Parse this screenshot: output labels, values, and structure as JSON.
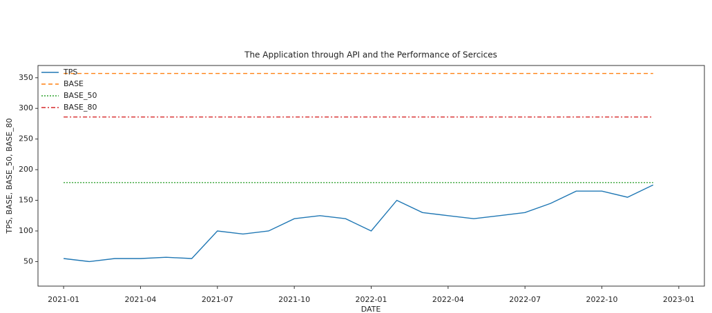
{
  "chart_data": {
    "type": "line",
    "title": "The Application through API and the Performance of Sercices",
    "x_label": "DATE",
    "y_label": "TPS, BASE, BASE_50, BASE_80",
    "x": [
      "2021-01",
      "2021-02",
      "2021-03",
      "2021-04",
      "2021-05",
      "2021-06",
      "2021-07",
      "2021-08",
      "2021-09",
      "2021-10",
      "2021-11",
      "2021-12",
      "2022-01",
      "2022-02",
      "2022-03",
      "2022-04",
      "2022-05",
      "2022-06",
      "2022-07",
      "2022-08",
      "2022-09",
      "2022-10",
      "2022-11",
      "2022-12"
    ],
    "series": [
      {
        "name": "TPS",
        "color": "#1f77b4",
        "dash": "solid",
        "values": [
          55,
          50,
          55,
          55,
          57,
          55,
          100,
          95,
          100,
          120,
          125,
          120,
          100,
          150,
          130,
          125,
          120,
          125,
          130,
          145,
          165,
          165,
          155,
          175
        ]
      },
      {
        "name": "BASE",
        "color": "#ff7f0e",
        "dash": "dashed",
        "values": [
          357,
          357,
          357,
          357,
          357,
          357,
          357,
          357,
          357,
          357,
          357,
          357,
          357,
          357,
          357,
          357,
          357,
          357,
          357,
          357,
          357,
          357,
          357,
          357
        ]
      },
      {
        "name": "BASE_50",
        "color": "#2ca02c",
        "dash": "dotted",
        "values": [
          179,
          179,
          179,
          179,
          179,
          179,
          179,
          179,
          179,
          179,
          179,
          179,
          179,
          179,
          179,
          179,
          179,
          179,
          179,
          179,
          179,
          179,
          179,
          179
        ]
      },
      {
        "name": "BASE_80",
        "color": "#d62728",
        "dash": "dashdot",
        "values": [
          286,
          286,
          286,
          286,
          286,
          286,
          286,
          286,
          286,
          286,
          286,
          286,
          286,
          286,
          286,
          286,
          286,
          286,
          286,
          286,
          286,
          286,
          286,
          286
        ]
      }
    ],
    "xlim": [
      "2020-12",
      "2023-02"
    ],
    "xticks": [
      "2021-01",
      "2021-04",
      "2021-07",
      "2021-10",
      "2022-01",
      "2022-04",
      "2022-07",
      "2022-10",
      "2023-01"
    ],
    "ylim": [
      10,
      370
    ],
    "yticks": [
      50,
      100,
      150,
      200,
      250,
      300,
      350
    ],
    "legend": "upper-left"
  }
}
